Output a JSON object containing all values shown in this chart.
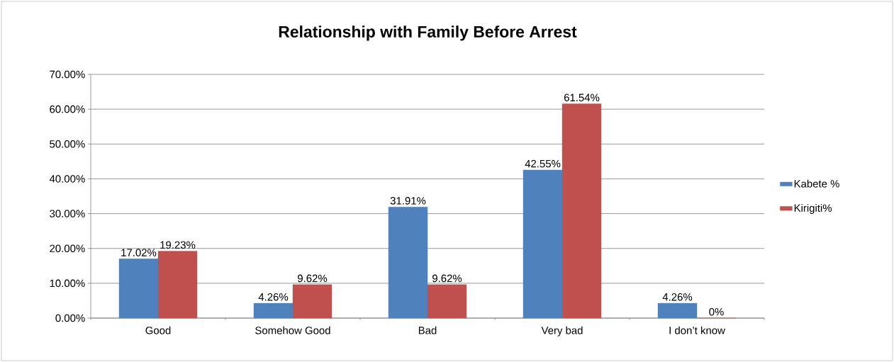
{
  "chart_data": {
    "type": "bar",
    "title": "Relationship with Family Before Arrest",
    "categories": [
      "Good",
      "Somehow Good",
      "Bad",
      "Very bad",
      "I don’t know"
    ],
    "series": [
      {
        "name": "Kabete %",
        "color": "#4f81bd",
        "values": [
          17.02,
          4.26,
          31.91,
          42.55,
          4.26
        ],
        "value_labels": [
          "17.02%",
          "4.26%",
          "31.91%",
          "42.55%",
          "4.26%"
        ]
      },
      {
        "name": "Kirigiti%",
        "color": "#c0504d",
        "values": [
          19.23,
          9.62,
          9.62,
          61.54,
          0
        ],
        "value_labels": [
          "19.23%",
          "9.62%",
          "9.62%",
          "61.54%",
          "0%"
        ]
      }
    ],
    "ylim": [
      0,
      70
    ],
    "yticks": [
      {
        "value": 0,
        "label": "0.00%"
      },
      {
        "value": 10,
        "label": "10.00%"
      },
      {
        "value": 20,
        "label": "20.00%"
      },
      {
        "value": 30,
        "label": "30.00%"
      },
      {
        "value": 40,
        "label": "40.00%"
      },
      {
        "value": 50,
        "label": "50.00%"
      },
      {
        "value": 60,
        "label": "60.00%"
      },
      {
        "value": 70,
        "label": "70.00%"
      }
    ],
    "grid": "y",
    "legend": "right"
  }
}
